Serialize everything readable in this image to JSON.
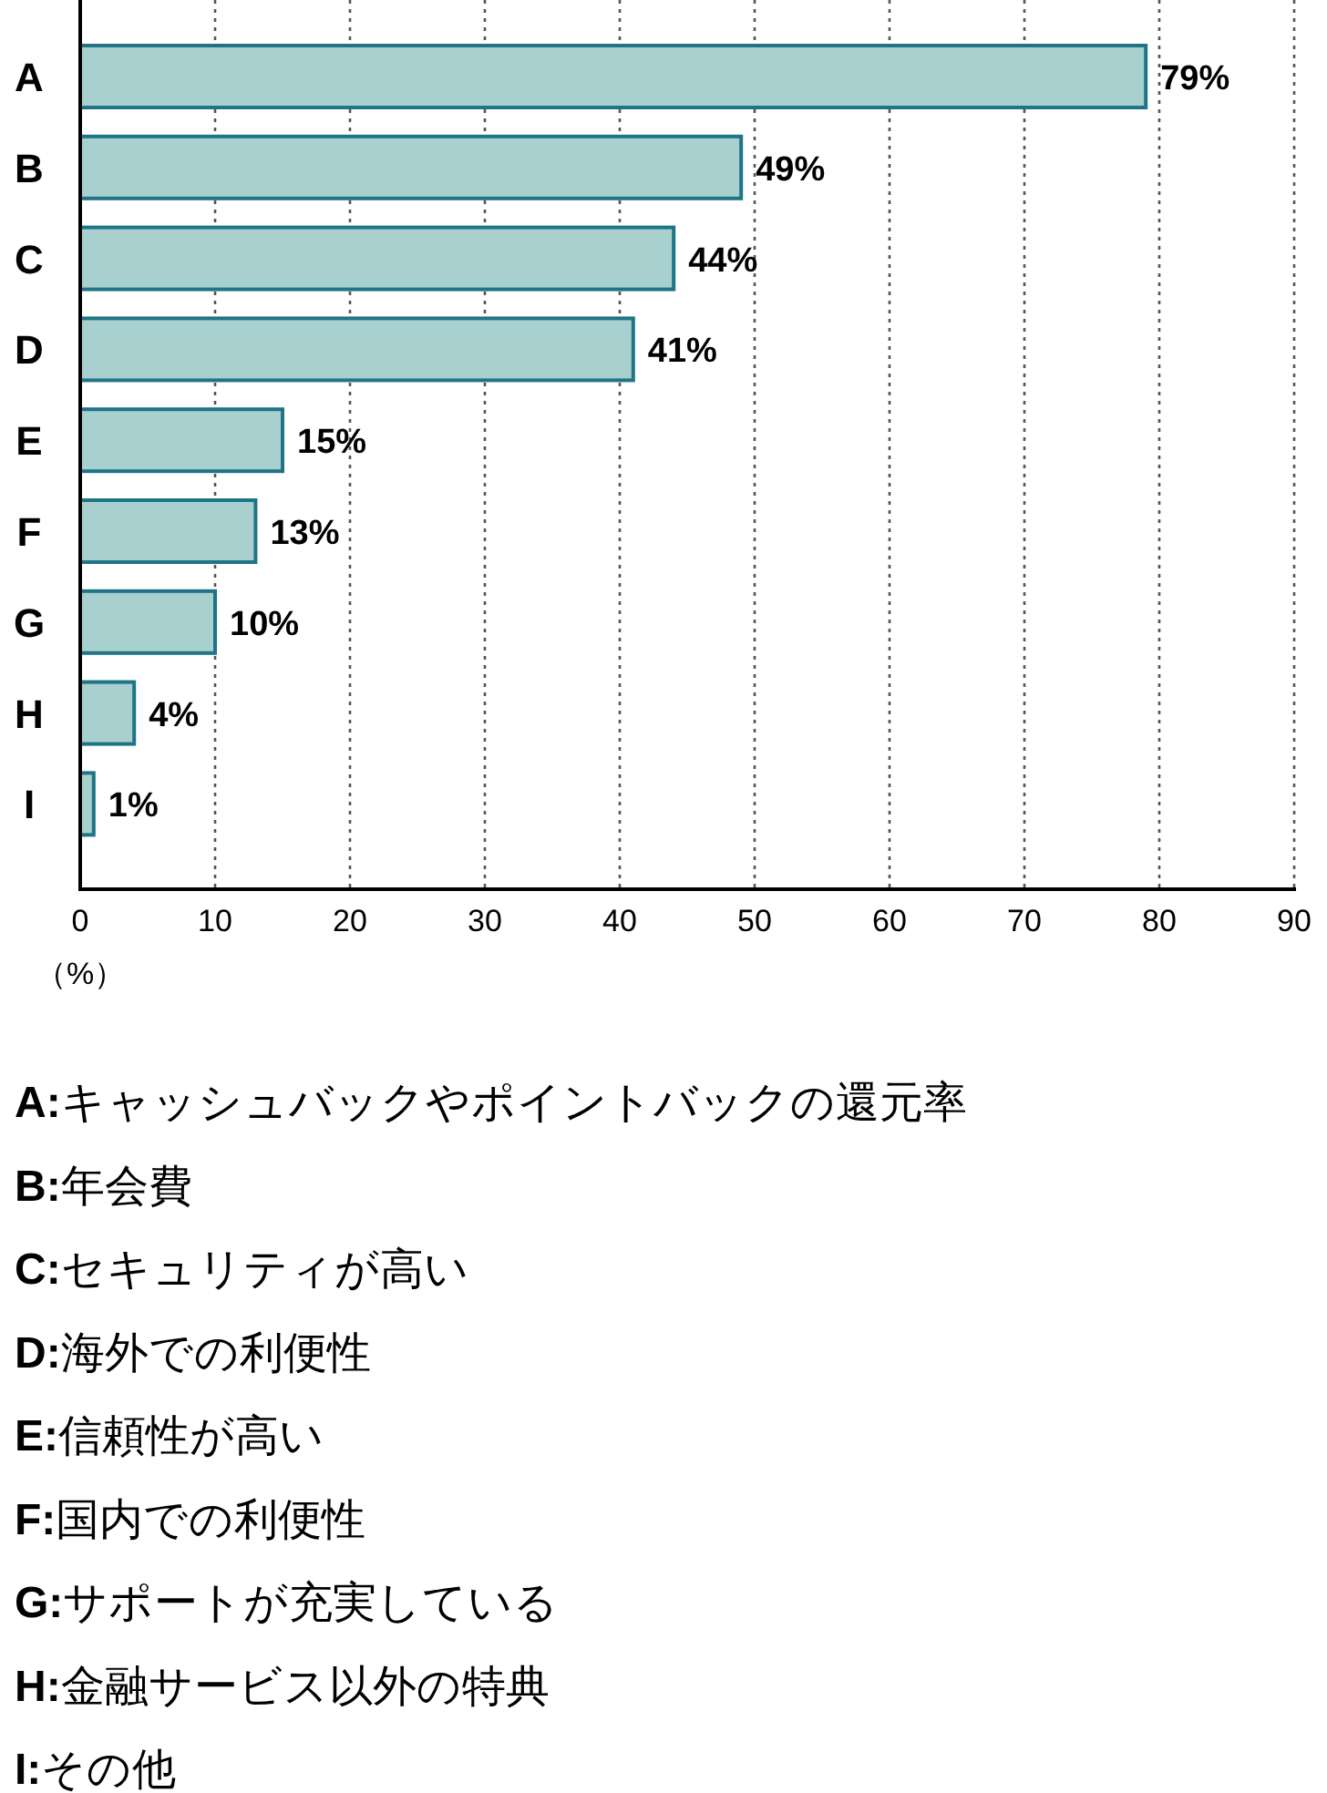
{
  "chart_data": {
    "type": "bar",
    "orientation": "horizontal",
    "categories": [
      "A",
      "B",
      "C",
      "D",
      "E",
      "F",
      "G",
      "H",
      "I"
    ],
    "values": [
      79,
      49,
      44,
      41,
      15,
      13,
      10,
      4,
      1
    ],
    "value_labels": [
      "79%",
      "49%",
      "44%",
      "41%",
      "15%",
      "13%",
      "10%",
      "4%",
      "1%"
    ],
    "color": "#a8d0cf",
    "xlabel": "（%）",
    "xlim": [
      0,
      90
    ],
    "xticks": [
      0,
      10,
      20,
      30,
      40,
      50,
      60,
      70,
      80,
      90
    ],
    "grid": "x",
    "annotations": [
      "**A:**キャッシュバックやポイントバックの還元率",
      "**B:**年会費",
      "**C:**セキュリティが高い",
      "**D:**海外での利便性",
      "**E:**信頼性が高い",
      "**F:**国内での利便性",
      "**G:**サポートが充実している",
      "**H:**金融サービス以外の特典",
      "**I:**その他"
    ]
  }
}
